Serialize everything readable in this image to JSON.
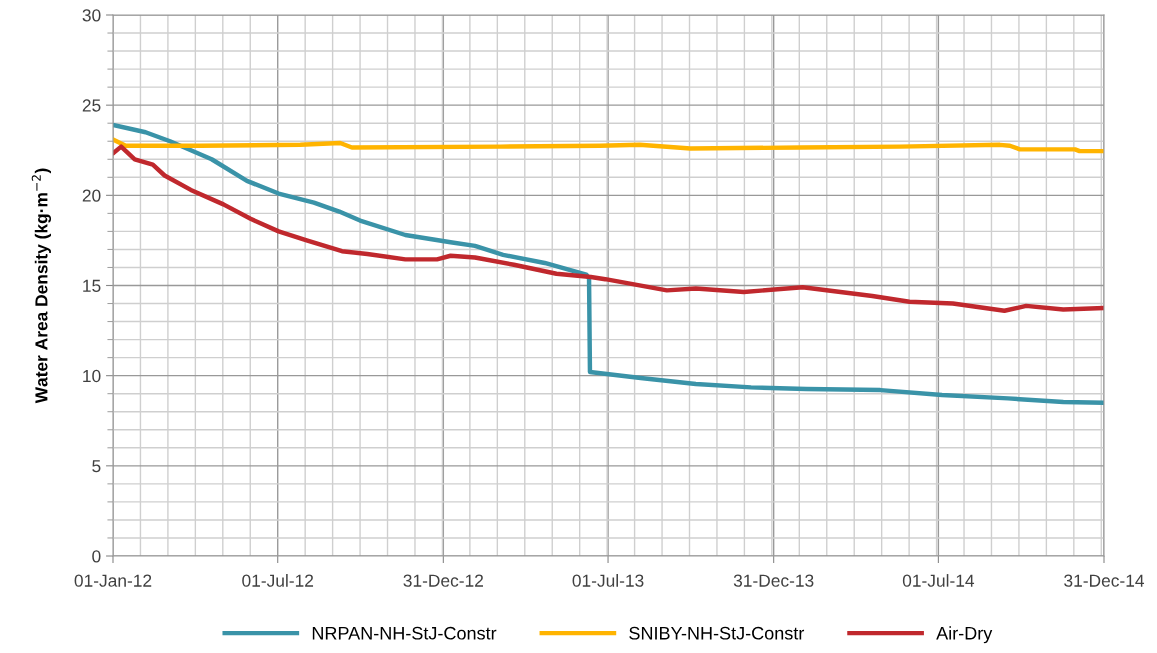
{
  "chart_data": {
    "type": "line",
    "ylabel": "Water Area Density (kg·m$^{−2}$)",
    "xlim": [
      "2012-01-01",
      "2014-12-31"
    ],
    "xticks": [
      {
        "value": "2012-01-01",
        "label": "01-Jan-12"
      },
      {
        "value": "2012-07-01",
        "label": "01-Jul-12"
      },
      {
        "value": "2012-12-31",
        "label": "31-Dec-12"
      },
      {
        "value": "2013-07-01",
        "label": "01-Jul-13"
      },
      {
        "value": "2013-12-31",
        "label": "31-Dec-13"
      },
      {
        "value": "2014-07-01",
        "label": "01-Jul-14"
      },
      {
        "value": "2014-12-31",
        "label": "31-Dec-14"
      }
    ],
    "ylim": [
      0,
      30
    ],
    "yticks": [
      0,
      5,
      10,
      15,
      20,
      25,
      30
    ],
    "grid": true,
    "legend": "bottom",
    "marker": "none",
    "line_style": "solid",
    "series": [
      {
        "name": "NRPAN-NH-StJ-Constr",
        "color": "#3a93a8",
        "x": [
          "2012-01-01",
          "2012-02-06",
          "2012-03-04",
          "2012-04-19",
          "2012-05-28",
          "2012-07-02",
          "2012-08-10",
          "2012-09-07",
          "2012-09-30",
          "2012-11-19",
          "2013-01-08",
          "2013-02-04",
          "2013-03-07",
          "2013-04-22",
          "2013-06-07",
          "2013-06-10",
          "2013-06-11",
          "2013-08-06",
          "2013-10-06",
          "2013-12-06",
          "2014-02-05",
          "2014-04-28",
          "2014-07-05",
          "2014-09-16",
          "2014-11-16",
          "2014-12-31"
        ],
        "values": [
          23.9,
          23.5,
          23.0,
          22.0,
          20.8,
          20.1,
          19.6,
          19.1,
          18.6,
          17.8,
          17.4,
          17.2,
          16.7,
          16.25,
          15.6,
          15.4,
          10.2,
          9.87,
          9.54,
          9.35,
          9.26,
          9.2,
          8.93,
          8.74,
          8.54,
          8.5
        ]
      },
      {
        "name": "SNIBY-NH-StJ-Constr",
        "color": "#ffb400",
        "x": [
          "2012-01-01",
          "2012-01-15",
          "2012-04-06",
          "2012-07-26",
          "2012-09-08",
          "2012-09-21",
          "2013-03-04",
          "2013-06-22",
          "2013-08-05",
          "2013-09-30",
          "2014-01-29",
          "2014-05-19",
          "2014-09-07",
          "2014-09-18",
          "2014-09-29",
          "2014-11-29",
          "2014-12-04",
          "2014-12-31"
        ],
        "values": [
          23.1,
          22.75,
          22.75,
          22.8,
          22.9,
          22.65,
          22.7,
          22.75,
          22.8,
          22.6,
          22.65,
          22.7,
          22.8,
          22.75,
          22.55,
          22.55,
          22.45,
          22.45
        ]
      },
      {
        "name": "Air-Dry",
        "color": "#c0282d",
        "x": [
          "2012-01-02",
          "2012-01-10",
          "2012-01-25",
          "2012-02-14",
          "2012-02-27",
          "2012-03-27",
          "2012-05-02",
          "2012-06-01",
          "2012-07-02",
          "2012-08-02",
          "2012-09-10",
          "2012-10-08",
          "2012-11-19",
          "2012-12-24",
          "2013-01-08",
          "2013-02-04",
          "2013-03-19",
          "2013-05-05",
          "2013-06-12",
          "2013-06-28",
          "2013-09-04",
          "2013-10-06",
          "2013-11-28",
          "2014-02-01",
          "2014-04-19",
          "2014-05-30",
          "2014-07-17",
          "2014-09-12",
          "2014-10-06",
          "2014-11-16",
          "2014-12-31"
        ],
        "values": [
          22.37,
          22.7,
          22.0,
          21.7,
          21.1,
          20.3,
          19.5,
          18.7,
          18.0,
          17.5,
          16.9,
          16.75,
          16.45,
          16.45,
          16.65,
          16.55,
          16.15,
          15.65,
          15.47,
          15.35,
          14.73,
          14.83,
          14.64,
          14.9,
          14.42,
          14.1,
          14.0,
          13.6,
          13.87,
          13.67,
          13.75
        ]
      }
    ]
  }
}
